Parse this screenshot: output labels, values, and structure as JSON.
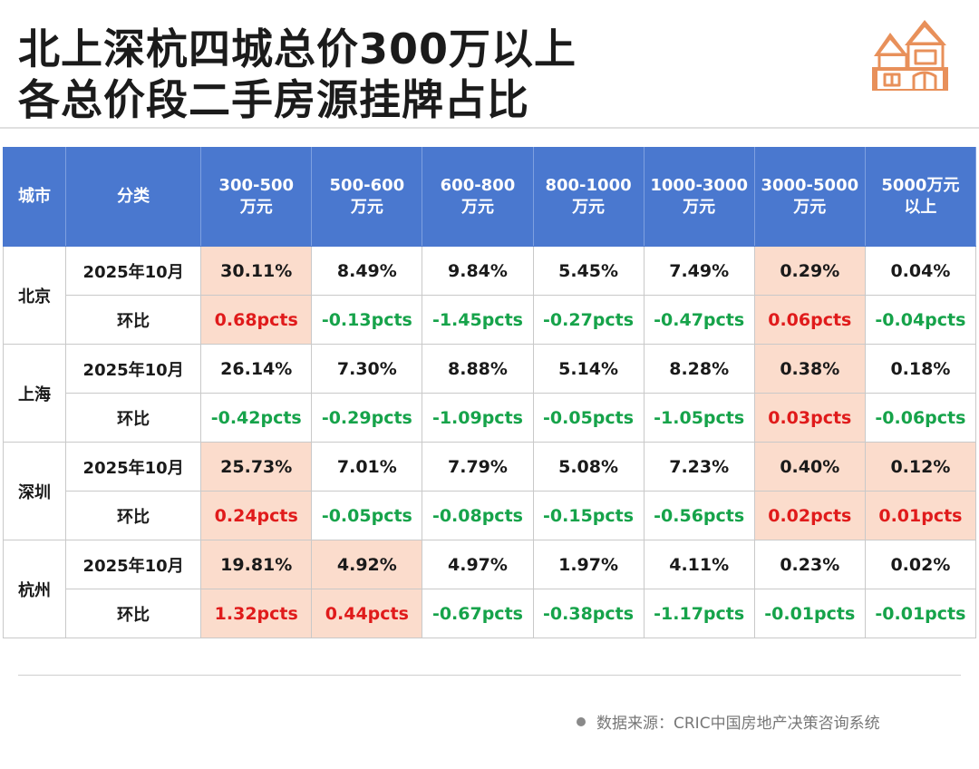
{
  "title": {
    "line1": "北上深杭四城总价300万以上",
    "line2": "各总价段二手房源挂牌占比"
  },
  "logo_icon": "house-icon",
  "colors": {
    "header_bg": "#4a78cf",
    "highlight": "#fbdccc",
    "positive": "#e01b1b",
    "negative": "#16a34a",
    "icon": "#e8905a"
  },
  "table": {
    "headers": [
      "城市",
      "分类",
      "300-500\n万元",
      "500-600\n万元",
      "600-800\n万元",
      "800-1000\n万元",
      "1000-3000\n万元",
      "3000-5000\n万元",
      "5000万元\n以上"
    ],
    "cities": [
      {
        "name": "北京",
        "rows": [
          {
            "label": "2025年10月",
            "values": [
              "30.11%",
              "8.49%",
              "9.84%",
              "5.45%",
              "7.49%",
              "0.29%",
              "0.04%"
            ]
          },
          {
            "label": "环比",
            "values": [
              "0.68pcts",
              "-0.13pcts",
              "-1.45pcts",
              "-0.27pcts",
              "-0.47pcts",
              "0.06pcts",
              "-0.04pcts"
            ]
          }
        ]
      },
      {
        "name": "上海",
        "rows": [
          {
            "label": "2025年10月",
            "values": [
              "26.14%",
              "7.30%",
              "8.88%",
              "5.14%",
              "8.28%",
              "0.38%",
              "0.18%"
            ]
          },
          {
            "label": "环比",
            "values": [
              "-0.42pcts",
              "-0.29pcts",
              "-1.09pcts",
              "-0.05pcts",
              "-1.05pcts",
              "0.03pcts",
              "-0.06pcts"
            ]
          }
        ]
      },
      {
        "name": "深圳",
        "rows": [
          {
            "label": "2025年10月",
            "values": [
              "25.73%",
              "7.01%",
              "7.79%",
              "5.08%",
              "7.23%",
              "0.40%",
              "0.12%"
            ]
          },
          {
            "label": "环比",
            "values": [
              "0.24pcts",
              "-0.05pcts",
              "-0.08pcts",
              "-0.15pcts",
              "-0.56pcts",
              "0.02pcts",
              "0.01pcts"
            ]
          }
        ]
      },
      {
        "name": "杭州",
        "rows": [
          {
            "label": "2025年10月",
            "values": [
              "19.81%",
              "4.92%",
              "4.97%",
              "1.97%",
              "4.11%",
              "0.23%",
              "0.02%"
            ]
          },
          {
            "label": "环比",
            "values": [
              "1.32pcts",
              "0.44pcts",
              "-0.67pcts",
              "-0.38pcts",
              "-1.17pcts",
              "-0.01pcts",
              "-0.01pcts"
            ]
          }
        ]
      }
    ]
  },
  "highlighted_columns": {
    "北京": [
      0,
      5
    ],
    "上海": [
      5
    ],
    "深圳": [
      0,
      5,
      6
    ],
    "杭州": [
      0,
      1
    ]
  },
  "source": "数据来源：CRIC中国房地产决策咨询系统"
}
